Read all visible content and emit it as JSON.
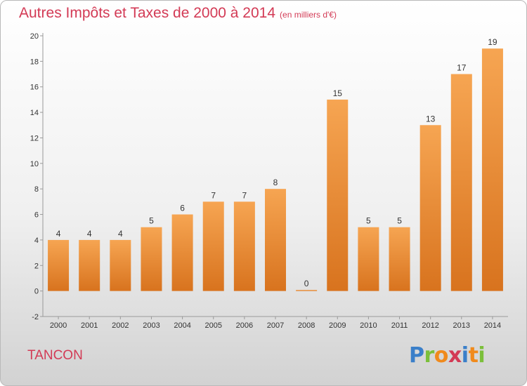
{
  "header": {
    "title": "Autres Impôts et Taxes de 2000 à 2014",
    "unit": "(en milliers d'€)"
  },
  "footer": {
    "commune": "TANCON"
  },
  "logo": {
    "text": "Proxiti",
    "colors": [
      "#3a7fc9",
      "#7bbf3a",
      "#f08a1c",
      "#d33a55",
      "#3a7fc9",
      "#f08a1c",
      "#7bbf3a"
    ]
  },
  "colors": {
    "bar_top": "#f6a552",
    "bar_bottom": "#d8731e",
    "text_accent": "#d33a55"
  },
  "chart_data": {
    "type": "bar",
    "title": "Autres Impôts et Taxes de 2000 à 2014",
    "subtitle": "(en milliers d'€)",
    "categories": [
      "2000",
      "2001",
      "2002",
      "2003",
      "2004",
      "2005",
      "2006",
      "2007",
      "2008",
      "2009",
      "2010",
      "2011",
      "2012",
      "2013",
      "2014"
    ],
    "values": [
      4,
      4,
      4,
      5,
      6,
      7,
      7,
      8,
      0,
      15,
      5,
      5,
      13,
      17,
      19
    ],
    "ylim": [
      -2,
      20
    ],
    "yticks": [
      -2,
      0,
      2,
      4,
      6,
      8,
      10,
      12,
      14,
      16,
      18,
      20
    ],
    "grid": false,
    "data_labels": true
  }
}
